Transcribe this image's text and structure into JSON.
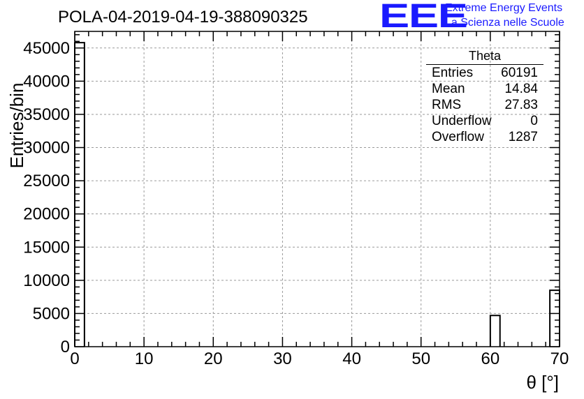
{
  "header": {
    "title": "POLA-04-2019-04-19-388090325",
    "logo_text": "EEE",
    "logo_line1": "Extreme Energy Events",
    "logo_line2": "La Scienza nelle Scuole",
    "logo_color": "#1a1aff"
  },
  "stats_box": {
    "name": "Theta",
    "rows": [
      {
        "label": "Entries",
        "value": "60191"
      },
      {
        "label": "Mean",
        "value": "14.84"
      },
      {
        "label": "RMS",
        "value": "27.83"
      },
      {
        "label": "Underflow",
        "value": "0"
      },
      {
        "label": "Overflow",
        "value": "1287"
      }
    ]
  },
  "chart_data": {
    "type": "bar",
    "title": "POLA-04-2019-04-19-388090325",
    "xlabel": "θ [°]",
    "ylabel": "Entries/bin",
    "xlim": [
      0,
      70
    ],
    "ylim": [
      0,
      47500
    ],
    "grid": true,
    "x_ticks": [
      0,
      10,
      20,
      30,
      40,
      50,
      60,
      70
    ],
    "y_ticks": [
      0,
      5000,
      10000,
      15000,
      20000,
      25000,
      30000,
      35000,
      40000,
      45000
    ],
    "bins": [
      {
        "x0": 0.0,
        "x1": 1.4,
        "value": 45800
      },
      {
        "x0": 60.0,
        "x1": 61.4,
        "value": 4700
      },
      {
        "x0": 68.6,
        "x1": 70.0,
        "value": 8500
      }
    ]
  }
}
